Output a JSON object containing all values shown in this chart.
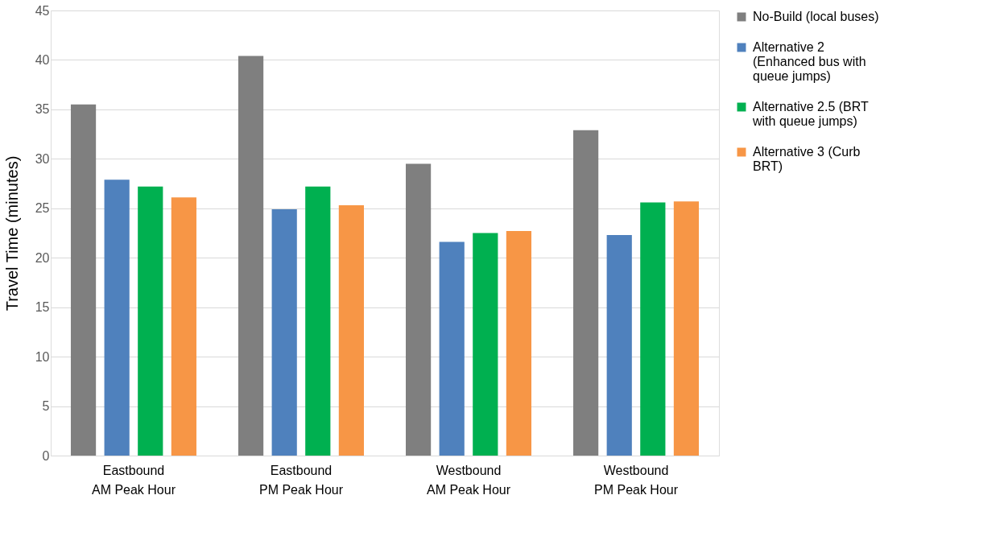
{
  "chart_data": {
    "type": "bar",
    "ylabel": "Travel Time (minutes)",
    "categories": [
      "Eastbound\nAM Peak Hour",
      "Eastbound\nPM Peak Hour",
      "Westbound\nAM Peak Hour",
      "Westbound\nPM Peak Hour"
    ],
    "series": [
      {
        "name": "No-Build (local buses)",
        "color": "#7f7f7f",
        "values": [
          35.5,
          40.4,
          29.5,
          32.9
        ]
      },
      {
        "name": "Alternative 2 (Enhanced bus with queue jumps)",
        "color": "#4f81bd",
        "values": [
          27.9,
          24.9,
          21.6,
          22.3
        ]
      },
      {
        "name": "Alternative 2.5 (BRT with queue jumps)",
        "color": "#00b050",
        "values": [
          27.2,
          27.2,
          22.5,
          25.6
        ]
      },
      {
        "name": "Alternative 3 (Curb BRT)",
        "color": "#f79646",
        "values": [
          26.1,
          25.3,
          22.7,
          25.7
        ]
      }
    ],
    "ylim": [
      0,
      45
    ],
    "yticks": [
      0,
      5,
      10,
      15,
      20,
      25,
      30,
      35,
      40,
      45
    ],
    "grid": "y",
    "legend": "right"
  }
}
